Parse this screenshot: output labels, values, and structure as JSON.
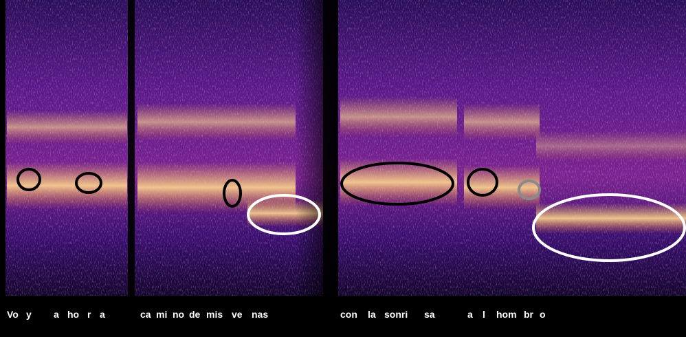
{
  "transcript": {
    "syllables": [
      "Vo",
      "y",
      "a",
      "ho",
      "r",
      "a",
      "ca",
      "mi",
      "no",
      "de",
      "mis",
      "ve",
      "nas",
      "con",
      "la",
      "sonri",
      "sa",
      "a",
      "l",
      "hom",
      "br",
      "o"
    ]
  }
}
